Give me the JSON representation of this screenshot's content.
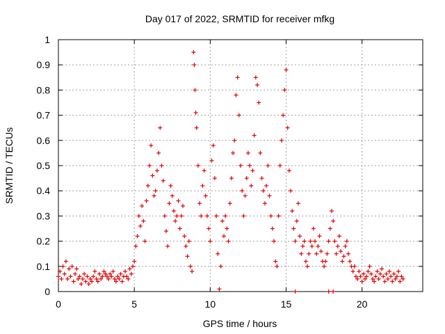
{
  "chart_data": {
    "type": "scatter",
    "title": "Day 017 of 2022, SRMTID for receiver mfkg",
    "xlabel": "GPS time / hours",
    "ylabel": "SRMTID / TECUs",
    "xlim": [
      0,
      24
    ],
    "ylim": [
      0,
      1
    ],
    "x_ticks": [
      0,
      5,
      10,
      15,
      20
    ],
    "x_tick_labels": [
      "0",
      "5",
      "10",
      "15",
      "20"
    ],
    "y_ticks": [
      0,
      0.1,
      0.2,
      0.3,
      0.4,
      0.5,
      0.6,
      0.7,
      0.8,
      0.9,
      1
    ],
    "y_tick_labels": [
      "0",
      "0.1",
      "0.2",
      "0.3",
      "0.4",
      "0.5",
      "0.6",
      "0.7",
      "0.8",
      "0.9",
      "1"
    ],
    "grid": true,
    "marker": "+",
    "color": "#e00000",
    "series": [
      {
        "name": "SRMTID",
        "points": [
          [
            0.0,
            0.06
          ],
          [
            0.1,
            0.08
          ],
          [
            0.2,
            0.05
          ],
          [
            0.3,
            0.1
          ],
          [
            0.4,
            0.07
          ],
          [
            0.5,
            0.12
          ],
          [
            0.6,
            0.05
          ],
          [
            0.7,
            0.09
          ],
          [
            0.8,
            0.06
          ],
          [
            0.9,
            0.1
          ],
          [
            1.0,
            0.04
          ],
          [
            1.1,
            0.07
          ],
          [
            1.2,
            0.09
          ],
          [
            1.3,
            0.05
          ],
          [
            1.4,
            0.06
          ],
          [
            1.5,
            0.03
          ],
          [
            1.6,
            0.05
          ],
          [
            1.7,
            0.07
          ],
          [
            1.8,
            0.04
          ],
          [
            1.9,
            0.06
          ],
          [
            2.0,
            0.03
          ],
          [
            2.1,
            0.05
          ],
          [
            2.2,
            0.04
          ],
          [
            2.3,
            0.06
          ],
          [
            2.4,
            0.08
          ],
          [
            2.5,
            0.05
          ],
          [
            2.6,
            0.04
          ],
          [
            2.7,
            0.07
          ],
          [
            2.8,
            0.05
          ],
          [
            2.9,
            0.06
          ],
          [
            3.0,
            0.08
          ],
          [
            3.1,
            0.07
          ],
          [
            3.2,
            0.06
          ],
          [
            3.3,
            0.05
          ],
          [
            3.4,
            0.07
          ],
          [
            3.5,
            0.06
          ],
          [
            3.6,
            0.08
          ],
          [
            3.7,
            0.05
          ],
          [
            3.8,
            0.04
          ],
          [
            3.9,
            0.06
          ],
          [
            4.0,
            0.05
          ],
          [
            4.1,
            0.07
          ],
          [
            4.2,
            0.04
          ],
          [
            4.3,
            0.06
          ],
          [
            4.4,
            0.08
          ],
          [
            4.5,
            0.06
          ],
          [
            4.6,
            0.05
          ],
          [
            4.7,
            0.09
          ],
          [
            4.8,
            0.07
          ],
          [
            4.9,
            0.1
          ],
          [
            5.0,
            0.12
          ],
          [
            5.1,
            0.18
          ],
          [
            5.2,
            0.22
          ],
          [
            5.3,
            0.3
          ],
          [
            5.4,
            0.26
          ],
          [
            5.5,
            0.34
          ],
          [
            5.6,
            0.28
          ],
          [
            5.7,
            0.2
          ],
          [
            5.8,
            0.36
          ],
          [
            5.9,
            0.42
          ],
          [
            6.0,
            0.5
          ],
          [
            6.1,
            0.58
          ],
          [
            6.2,
            0.46
          ],
          [
            6.3,
            0.38
          ],
          [
            6.4,
            0.4
          ],
          [
            6.5,
            0.48
          ],
          [
            6.6,
            0.55
          ],
          [
            6.7,
            0.65
          ],
          [
            6.8,
            0.5
          ],
          [
            6.9,
            0.44
          ],
          [
            7.0,
            0.3
          ],
          [
            7.1,
            0.24
          ],
          [
            7.2,
            0.18
          ],
          [
            7.3,
            0.35
          ],
          [
            7.4,
            0.42
          ],
          [
            7.5,
            0.38
          ],
          [
            7.6,
            0.32
          ],
          [
            7.7,
            0.28
          ],
          [
            7.8,
            0.3
          ],
          [
            7.9,
            0.36
          ],
          [
            8.0,
            0.25
          ],
          [
            8.1,
            0.3
          ],
          [
            8.2,
            0.34
          ],
          [
            8.3,
            0.22
          ],
          [
            8.4,
            0.18
          ],
          [
            8.5,
            0.14
          ],
          [
            8.6,
            0.2
          ],
          [
            8.7,
            0.1
          ],
          [
            8.8,
            0.08
          ],
          [
            8.9,
            0.95
          ],
          [
            8.95,
            0.9
          ],
          [
            9.0,
            0.8
          ],
          [
            9.05,
            0.71
          ],
          [
            9.1,
            0.65
          ],
          [
            9.2,
            0.5
          ],
          [
            9.3,
            0.35
          ],
          [
            9.4,
            0.3
          ],
          [
            9.5,
            0.42
          ],
          [
            9.6,
            0.48
          ],
          [
            9.7,
            0.38
          ],
          [
            9.8,
            0.3
          ],
          [
            9.9,
            0.25
          ],
          [
            10.0,
            0.2
          ],
          [
            10.1,
            0.52
          ],
          [
            10.2,
            0.58
          ],
          [
            10.3,
            0.45
          ],
          [
            10.4,
            0.3
          ],
          [
            10.5,
            0.15
          ],
          [
            10.6,
            0.01
          ],
          [
            10.7,
            0.1
          ],
          [
            10.8,
            0.28
          ],
          [
            10.9,
            0.22
          ],
          [
            11.0,
            0.3
          ],
          [
            11.1,
            0.25
          ],
          [
            11.2,
            0.2
          ],
          [
            11.3,
            0.35
          ],
          [
            11.4,
            0.45
          ],
          [
            11.5,
            0.55
          ],
          [
            11.6,
            0.6
          ],
          [
            11.7,
            0.78
          ],
          [
            11.8,
            0.85
          ],
          [
            11.9,
            0.7
          ],
          [
            12.0,
            0.5
          ],
          [
            12.1,
            0.4
          ],
          [
            12.2,
            0.3
          ],
          [
            12.3,
            0.38
          ],
          [
            12.4,
            0.45
          ],
          [
            12.5,
            0.55
          ],
          [
            12.6,
            0.5
          ],
          [
            12.7,
            0.42
          ],
          [
            12.8,
            0.48
          ],
          [
            12.9,
            0.62
          ],
          [
            13.0,
            0.85
          ],
          [
            13.1,
            0.82
          ],
          [
            13.2,
            0.75
          ],
          [
            13.3,
            0.55
          ],
          [
            13.4,
            0.45
          ],
          [
            13.5,
            0.4
          ],
          [
            13.6,
            0.35
          ],
          [
            13.7,
            0.42
          ],
          [
            13.8,
            0.5
          ],
          [
            13.9,
            0.38
          ],
          [
            14.0,
            0.3
          ],
          [
            14.1,
            0.25
          ],
          [
            14.2,
            0.2
          ],
          [
            14.3,
            0.12
          ],
          [
            14.4,
            0.1
          ],
          [
            14.5,
            0.3
          ],
          [
            14.6,
            0.5
          ],
          [
            14.7,
            0.6
          ],
          [
            14.8,
            0.7
          ],
          [
            14.9,
            0.8
          ],
          [
            15.0,
            0.88
          ],
          [
            15.1,
            0.65
          ],
          [
            15.2,
            0.48
          ],
          [
            15.3,
            0.4
          ],
          [
            15.4,
            0.32
          ],
          [
            15.5,
            0.25
          ],
          [
            15.6,
            0.2
          ],
          [
            15.7,
            0.28
          ],
          [
            15.8,
            0.35
          ],
          [
            15.9,
            0.22
          ],
          [
            16.0,
            0.15
          ],
          [
            16.1,
            0.18
          ],
          [
            16.2,
            0.2
          ],
          [
            16.3,
            0.12
          ],
          [
            16.4,
            0.1
          ],
          [
            16.5,
            0.15
          ],
          [
            16.6,
            0.2
          ],
          [
            16.7,
            0.18
          ],
          [
            16.8,
            0.25
          ],
          [
            16.9,
            0.2
          ],
          [
            17.0,
            0.15
          ],
          [
            17.1,
            0.18
          ],
          [
            17.2,
            0.22
          ],
          [
            17.3,
            0.16
          ],
          [
            17.4,
            0.12
          ],
          [
            17.5,
            0.1
          ],
          [
            17.6,
            0.12
          ],
          [
            17.7,
            0.15
          ],
          [
            17.8,
            0.2
          ],
          [
            17.9,
            0.25
          ],
          [
            18.0,
            0.32
          ],
          [
            18.1,
            0.28
          ],
          [
            18.2,
            0.2
          ],
          [
            18.3,
            0.15
          ],
          [
            18.4,
            0.18
          ],
          [
            18.5,
            0.22
          ],
          [
            18.6,
            0.16
          ],
          [
            18.7,
            0.12
          ],
          [
            18.8,
            0.14
          ],
          [
            18.9,
            0.18
          ],
          [
            19.0,
            0.2
          ],
          [
            19.1,
            0.15
          ],
          [
            19.2,
            0.12
          ],
          [
            19.3,
            0.1
          ],
          [
            19.4,
            0.08
          ],
          [
            19.5,
            0.1
          ],
          [
            19.6,
            0.06
          ],
          [
            19.7,
            0.05
          ],
          [
            19.8,
            0.08
          ],
          [
            19.9,
            0.06
          ],
          [
            20.0,
            0.04
          ],
          [
            20.1,
            0.07
          ],
          [
            20.2,
            0.05
          ],
          [
            20.3,
            0.06
          ],
          [
            20.4,
            0.08
          ],
          [
            20.5,
            0.1
          ],
          [
            20.6,
            0.07
          ],
          [
            20.7,
            0.05
          ],
          [
            20.8,
            0.04
          ],
          [
            20.9,
            0.06
          ],
          [
            21.0,
            0.08
          ],
          [
            21.1,
            0.05
          ],
          [
            21.2,
            0.07
          ],
          [
            21.3,
            0.09
          ],
          [
            21.4,
            0.06
          ],
          [
            21.5,
            0.04
          ],
          [
            21.6,
            0.07
          ],
          [
            21.7,
            0.05
          ],
          [
            21.8,
            0.08
          ],
          [
            21.9,
            0.06
          ],
          [
            22.0,
            0.04
          ],
          [
            22.1,
            0.07
          ],
          [
            22.2,
            0.05
          ],
          [
            22.3,
            0.06
          ],
          [
            22.4,
            0.08
          ],
          [
            22.5,
            0.04
          ],
          [
            22.6,
            0.06
          ],
          [
            22.7,
            0.05
          ],
          [
            15.6,
            0.0
          ],
          [
            17.8,
            0.0
          ],
          [
            18.1,
            0.0
          ]
        ]
      }
    ]
  }
}
